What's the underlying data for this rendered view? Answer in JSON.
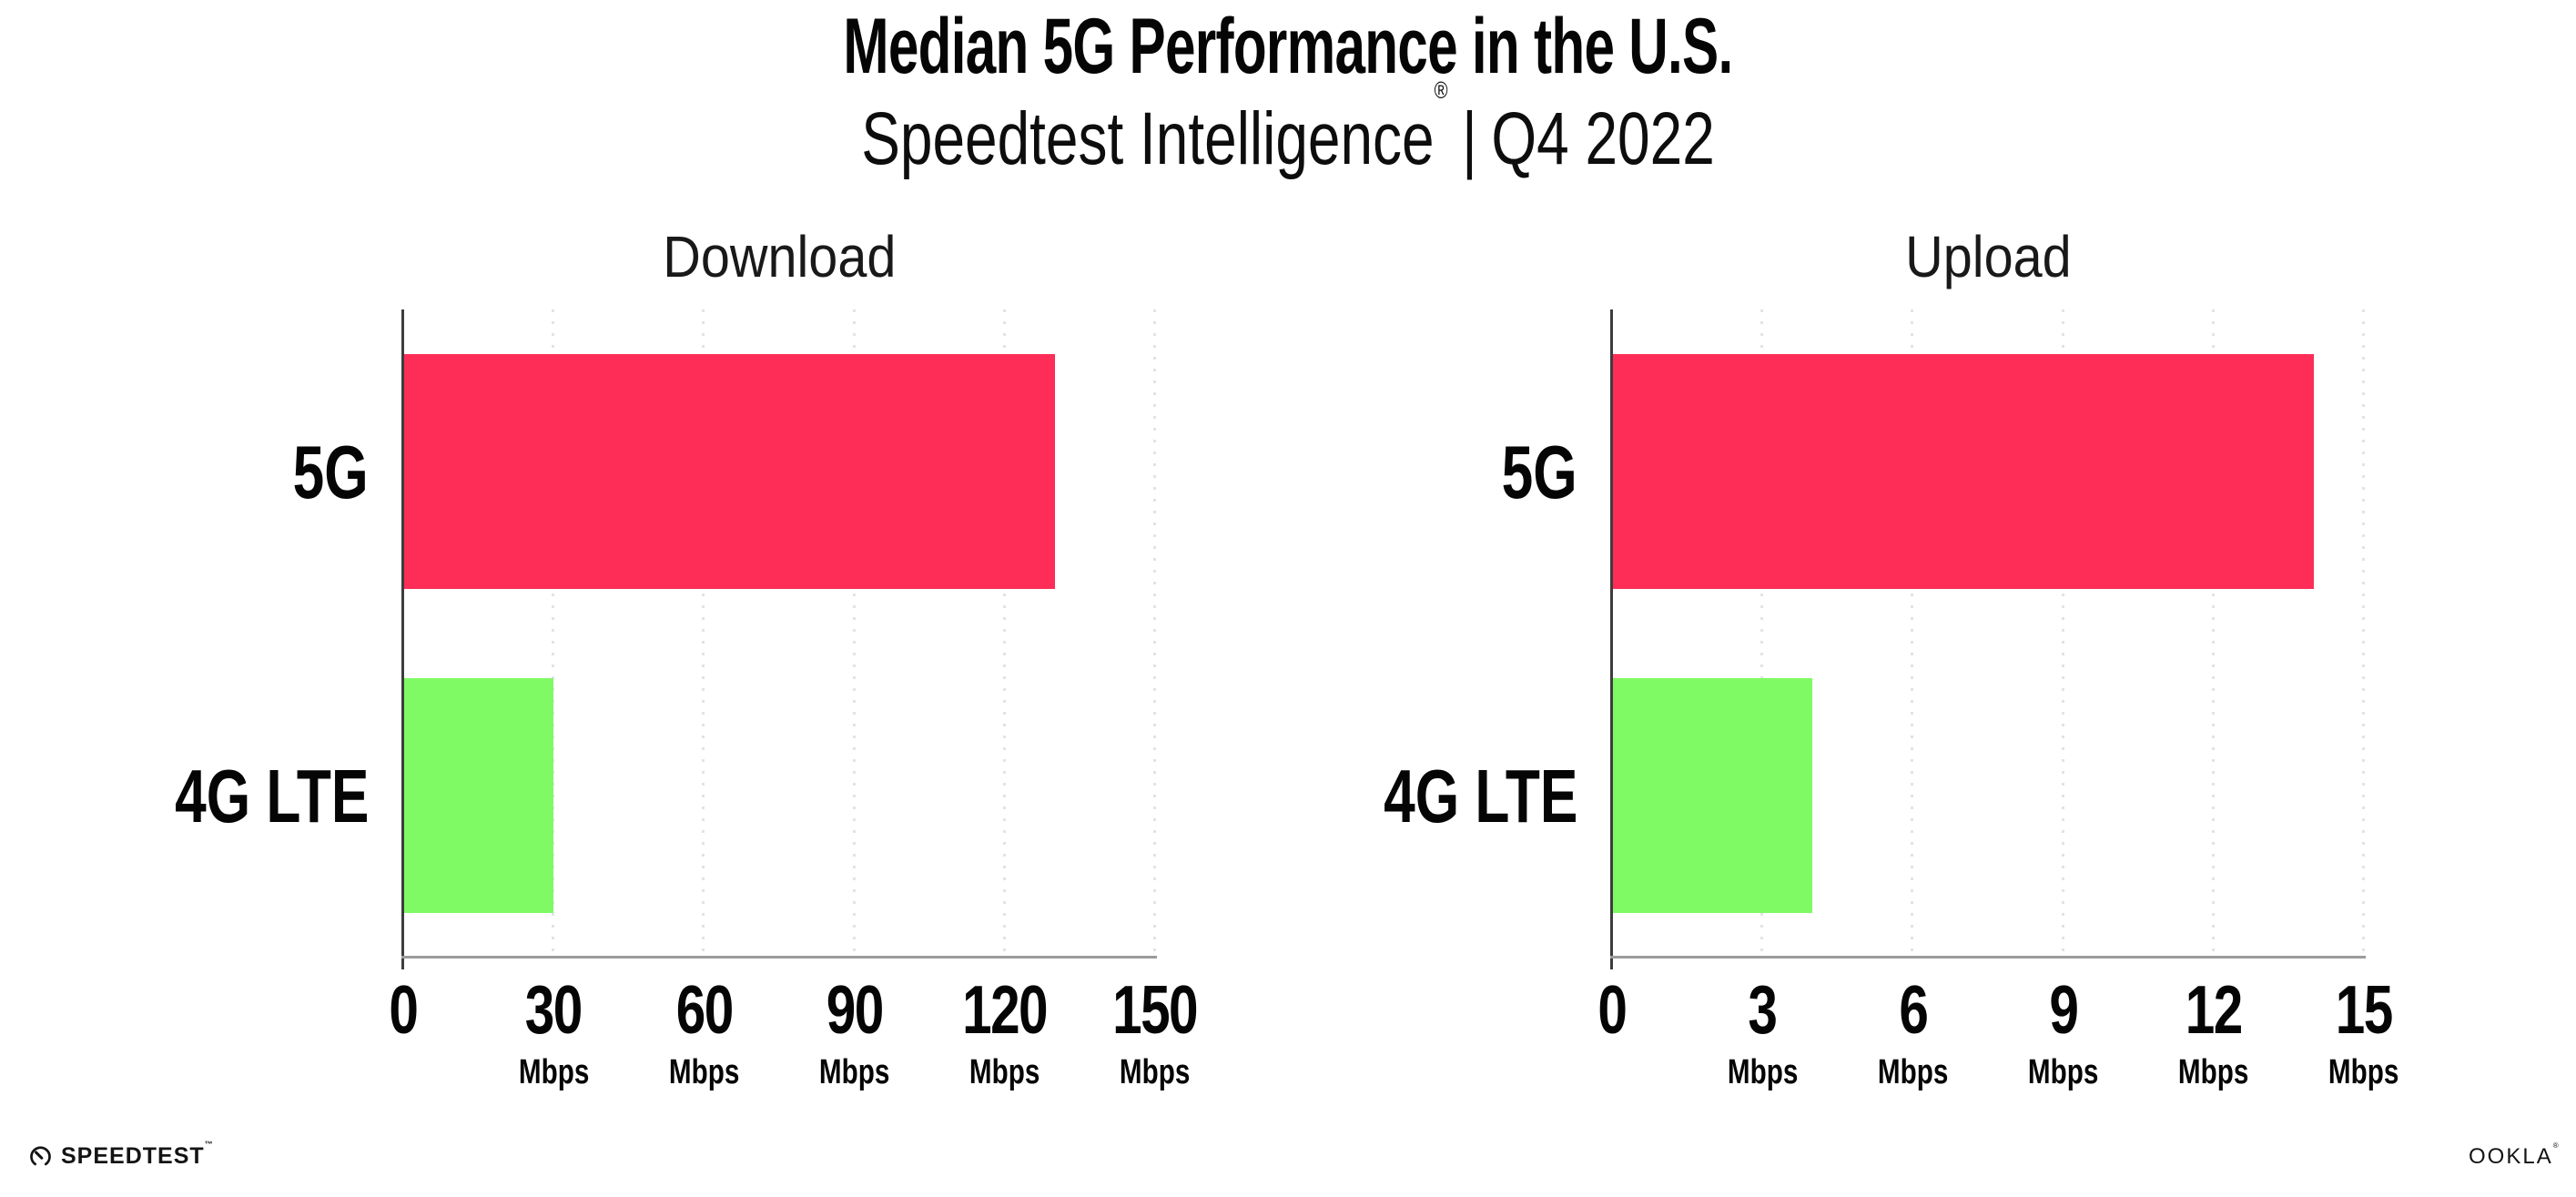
{
  "header": {
    "title": "Median 5G Performance in the U.S.",
    "subtitle": {
      "product": "Speedtest Intelligence",
      "registered_mark": "®",
      "separator": "|",
      "period": "Q4 2022"
    }
  },
  "chart_data": [
    {
      "type": "bar",
      "orientation": "horizontal",
      "title": "Download",
      "categories": [
        "5G",
        "4G LTE"
      ],
      "values": [
        130,
        30
      ],
      "unit": "Mbps",
      "xlim": [
        0,
        150
      ],
      "xticks": [
        0,
        30,
        60,
        90,
        120,
        150
      ],
      "tick_labels": [
        "0",
        "30",
        "60",
        "90",
        "120",
        "150"
      ],
      "grid": "dotted-vertical",
      "legend": "none",
      "series_colors": [
        "#fd2d57",
        "#80fa64"
      ]
    },
    {
      "type": "bar",
      "orientation": "horizontal",
      "title": "Upload",
      "categories": [
        "5G",
        "4G LTE"
      ],
      "values": [
        14,
        4
      ],
      "unit": "Mbps",
      "xlim": [
        0,
        15
      ],
      "xticks": [
        0,
        3,
        6,
        9,
        12,
        15
      ],
      "tick_labels": [
        "0",
        "3",
        "6",
        "9",
        "12",
        "15"
      ],
      "grid": "dotted-vertical",
      "legend": "none",
      "series_colors": [
        "#fd2d57",
        "#80fa64"
      ]
    }
  ],
  "footer": {
    "speedtest": {
      "wordmark": "SPEEDTEST",
      "trademark": "™"
    },
    "ookla": {
      "wordmark": "OOKLA",
      "registered_mark": "®"
    }
  },
  "colors": {
    "bar_5g": "#fd2d57",
    "bar_4g_lte": "#80fa64",
    "gridline": "#e2e2ec",
    "y_axis": "#3d3d3d",
    "x_axis": "#9b9b9b",
    "text": "#0d0d0d",
    "background": "#ffffff"
  }
}
